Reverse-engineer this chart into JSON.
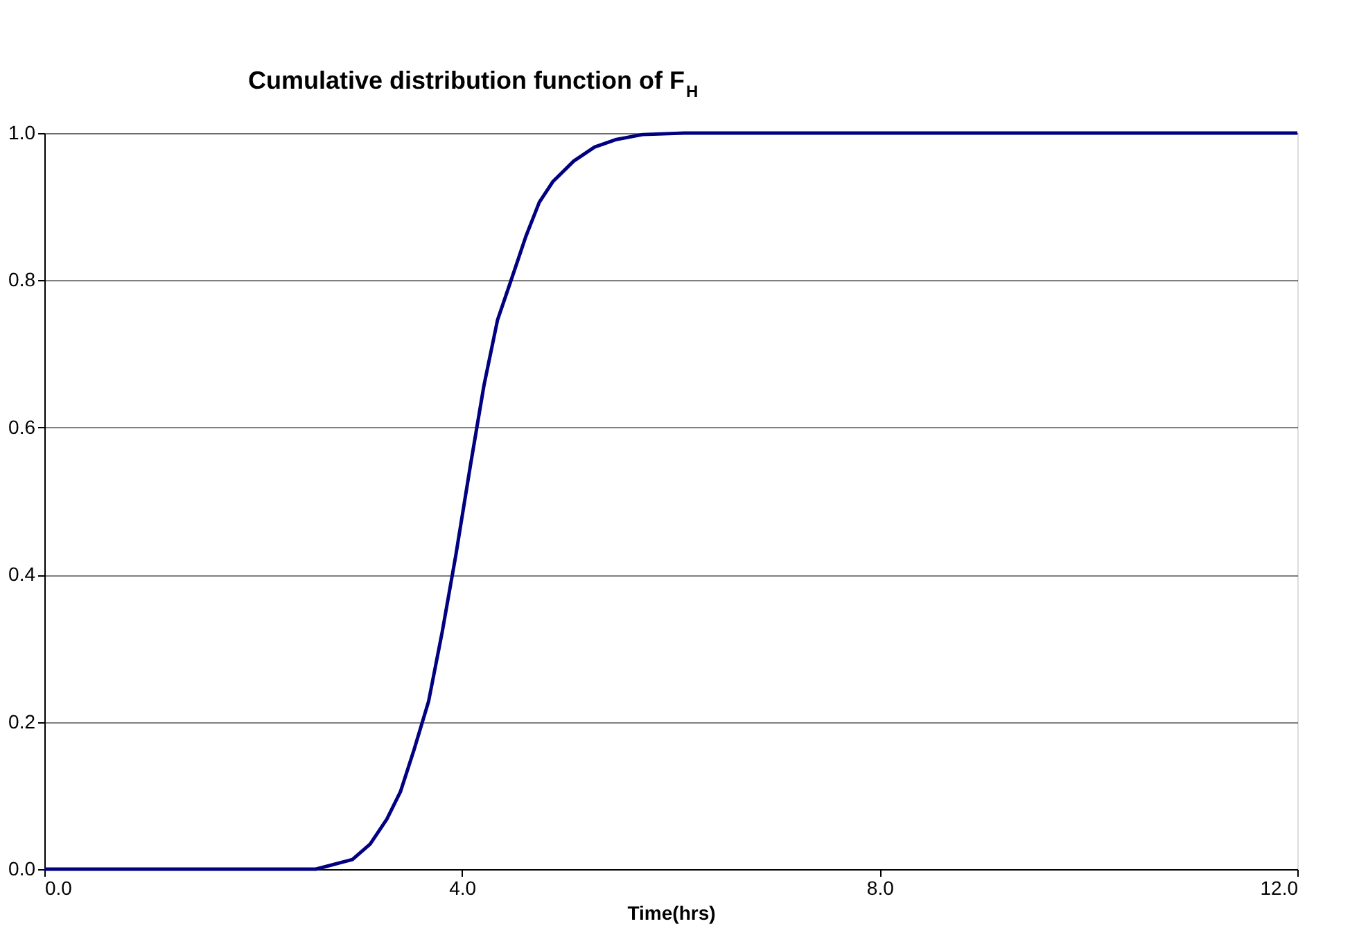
{
  "chart_data": {
    "type": "line",
    "title": "Cumulative distribution function of F$_{H}$",
    "xlabel": "Time(hrs)",
    "x": [
      0,
      1,
      2,
      2.6,
      2.95,
      3.12,
      3.28,
      3.41,
      3.54,
      3.68,
      3.81,
      3.94,
      4.08,
      4.21,
      4.34,
      4.47,
      4.61,
      4.74,
      4.87,
      5.07,
      5.27,
      5.47,
      5.73,
      6.13,
      8,
      10,
      12
    ],
    "series": [
      {
        "color": "#000080",
        "values": [
          0,
          0,
          0,
          0,
          0.013,
          0.034,
          0.068,
          0.105,
          0.162,
          0.228,
          0.322,
          0.426,
          0.548,
          0.657,
          0.746,
          0.8,
          0.859,
          0.906,
          0.934,
          0.962,
          0.981,
          0.991,
          0.998,
          1.0,
          1.0,
          1.0,
          1.0
        ]
      }
    ],
    "xlim": [
      0,
      12
    ],
    "xticks": [
      {
        "value": 0,
        "label": "0.0"
      },
      {
        "value": 4,
        "label": "4.0"
      },
      {
        "value": 8,
        "label": "8.0"
      },
      {
        "value": 12,
        "label": "12.0"
      }
    ],
    "ylim": [
      0,
      1
    ],
    "yticks": [
      {
        "value": 0,
        "label": "0.0"
      },
      {
        "value": 0.2,
        "label": "0.2"
      },
      {
        "value": 0.4,
        "label": "0.4"
      },
      {
        "value": 0.6,
        "label": "0.6"
      },
      {
        "value": 0.8,
        "label": "0.8"
      },
      {
        "value": 1,
        "label": "1.0"
      }
    ],
    "grid": "y",
    "line_style": "solid",
    "marker": "none"
  }
}
